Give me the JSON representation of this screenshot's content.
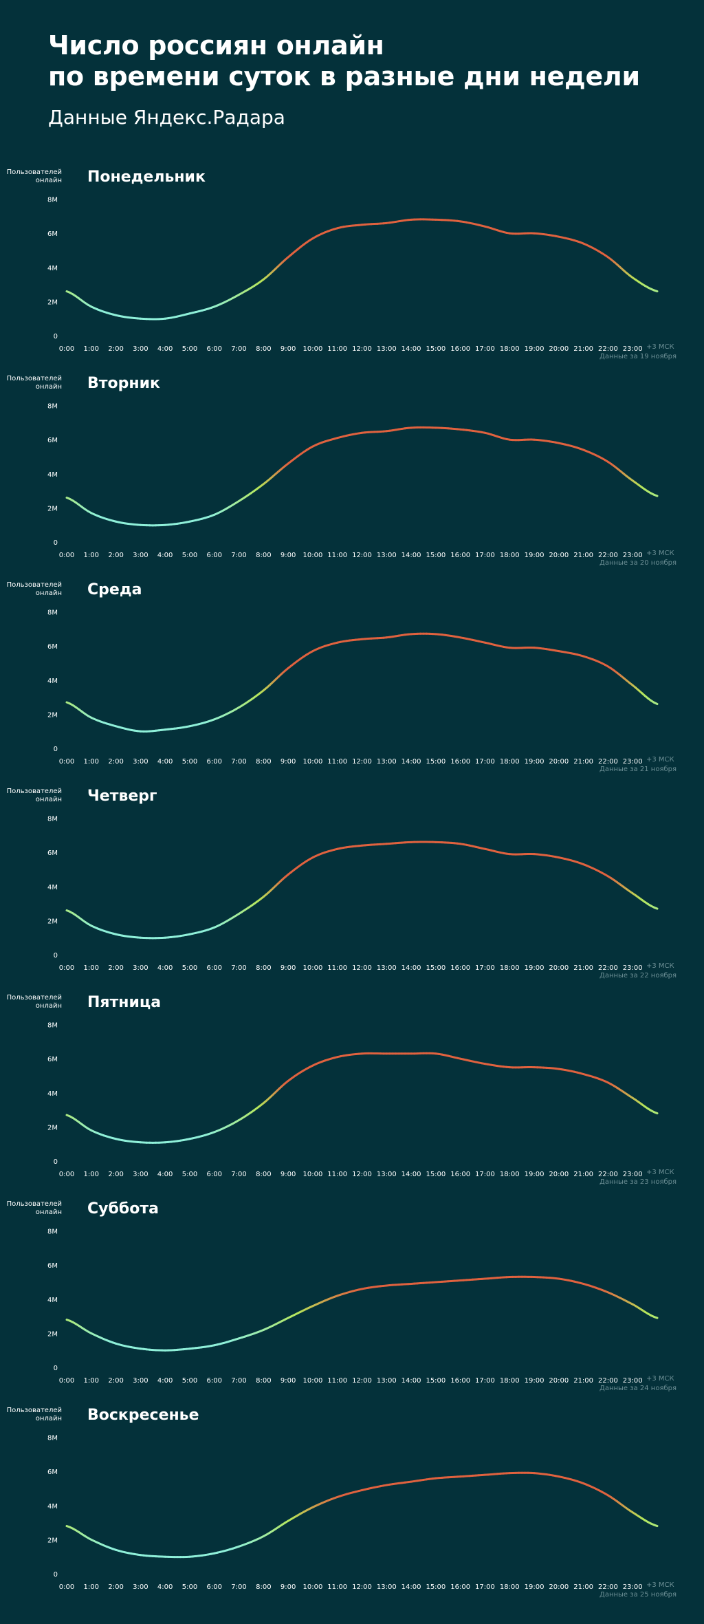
{
  "header": {
    "title_line1": "Число россиян онлайн",
    "title_line2": "по времени суток в разные дни недели",
    "subtitle": "Данные Яндекс.Радара"
  },
  "colors": {
    "background": "#04313a",
    "low": "#8ff0d9",
    "mid": "#b6e65a",
    "high": "#e0623f",
    "note": "#6d8f95"
  },
  "common": {
    "ylabel": "Пользователей онлайн",
    "timezone": "+3 МСК"
  },
  "chart_data": [
    {
      "type": "line",
      "title": "Понедельник",
      "note": "Данные за 19 ноября",
      "ylabel": "Пользователей онлайн",
      "xlim": [
        0,
        24
      ],
      "ylim": [
        0,
        8
      ],
      "yticks": [
        "0",
        "2M",
        "4M",
        "6M",
        "8M"
      ],
      "xticks": [
        "0:00",
        "1:00",
        "2:00",
        "3:00",
        "4:00",
        "5:00",
        "6:00",
        "7:00",
        "8:00",
        "9:00",
        "10:00",
        "11:00",
        "12:00",
        "13:00",
        "14:00",
        "15:00",
        "16:00",
        "17:00",
        "18:00",
        "19:00",
        "20:00",
        "21:00",
        "22:00",
        "23:00"
      ],
      "x": [
        0,
        1,
        2,
        3,
        4,
        5,
        6,
        7,
        8,
        9,
        10,
        11,
        12,
        13,
        14,
        15,
        16,
        17,
        18,
        19,
        20,
        21,
        22,
        23,
        24
      ],
      "values": [
        2.6,
        1.7,
        1.2,
        1.0,
        1.0,
        1.3,
        1.7,
        2.4,
        3.3,
        4.6,
        5.7,
        6.3,
        6.5,
        6.6,
        6.8,
        6.8,
        6.7,
        6.4,
        6.0,
        6.0,
        5.8,
        5.4,
        4.6,
        3.4,
        2.6
      ]
    },
    {
      "type": "line",
      "title": "Вторник",
      "note": "Данные за 20 ноября",
      "ylabel": "Пользователей онлайн",
      "xlim": [
        0,
        24
      ],
      "ylim": [
        0,
        8
      ],
      "yticks": [
        "0",
        "2M",
        "4M",
        "6M",
        "8M"
      ],
      "xticks": [
        "0:00",
        "1:00",
        "2:00",
        "3:00",
        "4:00",
        "5:00",
        "6:00",
        "7:00",
        "8:00",
        "9:00",
        "10:00",
        "11:00",
        "12:00",
        "13:00",
        "14:00",
        "15:00",
        "16:00",
        "17:00",
        "18:00",
        "19:00",
        "20:00",
        "21:00",
        "22:00",
        "23:00"
      ],
      "x": [
        0,
        1,
        2,
        3,
        4,
        5,
        6,
        7,
        8,
        9,
        10,
        11,
        12,
        13,
        14,
        15,
        16,
        17,
        18,
        19,
        20,
        21,
        22,
        23,
        24
      ],
      "values": [
        2.6,
        1.7,
        1.2,
        1.0,
        1.0,
        1.2,
        1.6,
        2.4,
        3.4,
        4.6,
        5.6,
        6.1,
        6.4,
        6.5,
        6.7,
        6.7,
        6.6,
        6.4,
        6.0,
        6.0,
        5.8,
        5.4,
        4.7,
        3.6,
        2.7
      ]
    },
    {
      "type": "line",
      "title": "Среда",
      "note": "Данные за 21 ноября",
      "ylabel": "Пользователей онлайн",
      "xlim": [
        0,
        24
      ],
      "ylim": [
        0,
        8
      ],
      "yticks": [
        "0",
        "2M",
        "4M",
        "6M",
        "8M"
      ],
      "xticks": [
        "0:00",
        "1:00",
        "2:00",
        "3:00",
        "4:00",
        "5:00",
        "6:00",
        "7:00",
        "8:00",
        "9:00",
        "10:00",
        "11:00",
        "12:00",
        "13:00",
        "14:00",
        "15:00",
        "16:00",
        "17:00",
        "18:00",
        "19:00",
        "20:00",
        "21:00",
        "22:00",
        "23:00"
      ],
      "x": [
        0,
        1,
        2,
        3,
        4,
        5,
        6,
        7,
        8,
        9,
        10,
        11,
        12,
        13,
        14,
        15,
        16,
        17,
        18,
        19,
        20,
        21,
        22,
        23,
        24
      ],
      "values": [
        2.7,
        1.8,
        1.3,
        1.0,
        1.1,
        1.3,
        1.7,
        2.4,
        3.4,
        4.7,
        5.7,
        6.2,
        6.4,
        6.5,
        6.7,
        6.7,
        6.5,
        6.2,
        5.9,
        5.9,
        5.7,
        5.4,
        4.8,
        3.7,
        2.6
      ]
    },
    {
      "type": "line",
      "title": "Четверг",
      "note": "Данные за 22 ноября",
      "ylabel": "Пользователей онлайн",
      "xlim": [
        0,
        24
      ],
      "ylim": [
        0,
        8
      ],
      "yticks": [
        "0",
        "2M",
        "4M",
        "6M",
        "8M"
      ],
      "xticks": [
        "0:00",
        "1:00",
        "2:00",
        "3:00",
        "4:00",
        "5:00",
        "6:00",
        "7:00",
        "8:00",
        "9:00",
        "10:00",
        "11:00",
        "12:00",
        "13:00",
        "14:00",
        "15:00",
        "16:00",
        "17:00",
        "18:00",
        "19:00",
        "20:00",
        "21:00",
        "22:00",
        "23:00"
      ],
      "x": [
        0,
        1,
        2,
        3,
        4,
        5,
        6,
        7,
        8,
        9,
        10,
        11,
        12,
        13,
        14,
        15,
        16,
        17,
        18,
        19,
        20,
        21,
        22,
        23,
        24
      ],
      "values": [
        2.6,
        1.7,
        1.2,
        1.0,
        1.0,
        1.2,
        1.6,
        2.4,
        3.4,
        4.7,
        5.7,
        6.2,
        6.4,
        6.5,
        6.6,
        6.6,
        6.5,
        6.2,
        5.9,
        5.9,
        5.7,
        5.3,
        4.6,
        3.6,
        2.7
      ]
    },
    {
      "type": "line",
      "title": "Пятница",
      "note": "Данные за 23 ноября",
      "ylabel": "Пользователей онлайн",
      "xlim": [
        0,
        24
      ],
      "ylim": [
        0,
        8
      ],
      "yticks": [
        "0",
        "2M",
        "4M",
        "6M",
        "8M"
      ],
      "xticks": [
        "0:00",
        "1:00",
        "2:00",
        "3:00",
        "4:00",
        "5:00",
        "6:00",
        "7:00",
        "8:00",
        "9:00",
        "10:00",
        "11:00",
        "12:00",
        "13:00",
        "14:00",
        "15:00",
        "16:00",
        "17:00",
        "18:00",
        "19:00",
        "20:00",
        "21:00",
        "22:00",
        "23:00"
      ],
      "x": [
        0,
        1,
        2,
        3,
        4,
        5,
        6,
        7,
        8,
        9,
        10,
        11,
        12,
        13,
        14,
        15,
        16,
        17,
        18,
        19,
        20,
        21,
        22,
        23,
        24
      ],
      "values": [
        2.7,
        1.8,
        1.3,
        1.1,
        1.1,
        1.3,
        1.7,
        2.4,
        3.4,
        4.7,
        5.6,
        6.1,
        6.3,
        6.3,
        6.3,
        6.3,
        6.0,
        5.7,
        5.5,
        5.5,
        5.4,
        5.1,
        4.6,
        3.7,
        2.8
      ]
    },
    {
      "type": "line",
      "title": "Суббота",
      "note": "Данные за 24 ноября",
      "ylabel": "Пользователей онлайн",
      "xlim": [
        0,
        24
      ],
      "ylim": [
        0,
        8
      ],
      "yticks": [
        "0",
        "2M",
        "4M",
        "6M",
        "8M"
      ],
      "xticks": [
        "0:00",
        "1:00",
        "2:00",
        "3:00",
        "4:00",
        "5:00",
        "6:00",
        "7:00",
        "8:00",
        "9:00",
        "10:00",
        "11:00",
        "12:00",
        "13:00",
        "14:00",
        "15:00",
        "16:00",
        "17:00",
        "18:00",
        "19:00",
        "20:00",
        "21:00",
        "22:00",
        "23:00"
      ],
      "x": [
        0,
        1,
        2,
        3,
        4,
        5,
        6,
        7,
        8,
        9,
        10,
        11,
        12,
        13,
        14,
        15,
        16,
        17,
        18,
        19,
        20,
        21,
        22,
        23,
        24
      ],
      "values": [
        2.8,
        2.0,
        1.4,
        1.1,
        1.0,
        1.1,
        1.3,
        1.7,
        2.2,
        2.9,
        3.6,
        4.2,
        4.6,
        4.8,
        4.9,
        5.0,
        5.1,
        5.2,
        5.3,
        5.3,
        5.2,
        4.9,
        4.4,
        3.7,
        2.9
      ]
    },
    {
      "type": "line",
      "title": "Воскресенье",
      "note": "Данные за 25 ноября",
      "ylabel": "Пользователей онлайн",
      "xlim": [
        0,
        24
      ],
      "ylim": [
        0,
        8
      ],
      "yticks": [
        "0",
        "2M",
        "4M",
        "6M",
        "8M"
      ],
      "xticks": [
        "0:00",
        "1:00",
        "2:00",
        "3:00",
        "4:00",
        "5:00",
        "6:00",
        "7:00",
        "8:00",
        "9:00",
        "10:00",
        "11:00",
        "12:00",
        "13:00",
        "14:00",
        "15:00",
        "16:00",
        "17:00",
        "18:00",
        "19:00",
        "20:00",
        "21:00",
        "22:00",
        "23:00"
      ],
      "x": [
        0,
        1,
        2,
        3,
        4,
        5,
        6,
        7,
        8,
        9,
        10,
        11,
        12,
        13,
        14,
        15,
        16,
        17,
        18,
        19,
        20,
        21,
        22,
        23,
        24
      ],
      "values": [
        2.8,
        2.0,
        1.4,
        1.1,
        1.0,
        1.0,
        1.2,
        1.6,
        2.2,
        3.1,
        3.9,
        4.5,
        4.9,
        5.2,
        5.4,
        5.6,
        5.7,
        5.8,
        5.9,
        5.9,
        5.7,
        5.3,
        4.6,
        3.6,
        2.8
      ]
    }
  ]
}
